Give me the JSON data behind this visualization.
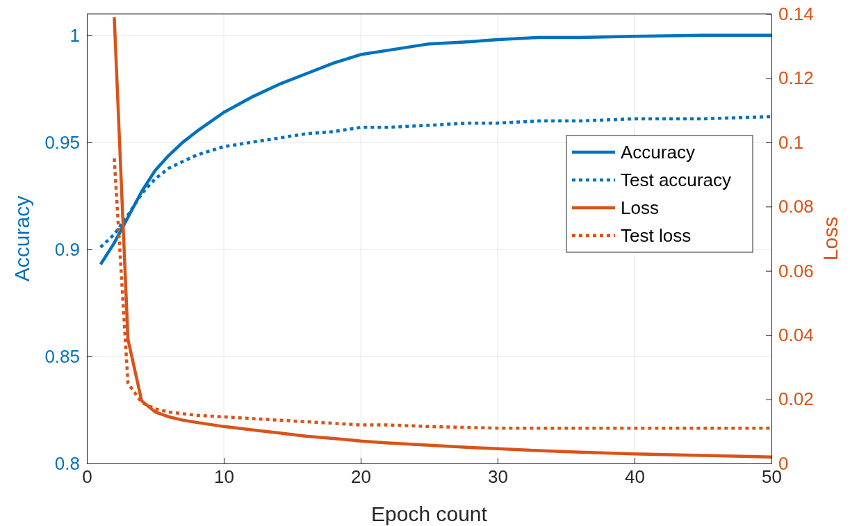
{
  "chart_data": {
    "type": "line",
    "xlabel": "Epoch count",
    "ylabel": "Accuracy",
    "y2label": "Loss",
    "x": [
      1,
      2,
      3,
      4,
      5,
      6,
      7,
      8,
      10,
      12,
      14,
      16,
      18,
      20,
      22,
      25,
      28,
      30,
      33,
      36,
      40,
      45,
      50
    ],
    "xlim": [
      0,
      50
    ],
    "xticks": [
      0,
      10,
      20,
      30,
      40,
      50
    ],
    "ylim": [
      0.8,
      1.01
    ],
    "yticks": [
      0.8,
      0.85,
      0.9,
      0.95,
      1
    ],
    "y2lim": [
      0,
      0.14
    ],
    "y2ticks": [
      0,
      0.02,
      0.04,
      0.06,
      0.08,
      0.1,
      0.12,
      0.14
    ],
    "grid": true,
    "legend": "right",
    "marker": "none",
    "series": [
      {
        "name": "Accuracy",
        "color": "#0072bd",
        "line_style": "solid",
        "values": [
          0.893,
          0.903,
          0.915,
          0.927,
          0.937,
          0.944,
          0.95,
          0.955,
          0.964,
          0.971,
          0.977,
          0.982,
          0.987,
          0.991,
          0.993,
          0.996,
          0.997,
          0.998,
          0.999,
          0.999,
          0.9995,
          1,
          1
        ]
      },
      {
        "name": "Test accuracy",
        "color": "#0072bd",
        "line_style": "dotted",
        "values": [
          0.901,
          0.907,
          0.916,
          0.926,
          0.933,
          0.938,
          0.941,
          0.944,
          0.948,
          0.95,
          0.952,
          0.954,
          0.955,
          0.957,
          0.957,
          0.958,
          0.959,
          0.959,
          0.96,
          0.96,
          0.961,
          0.961,
          0.962
        ]
      },
      {
        "name": "Loss",
        "color": "#d95319",
        "line_style": "solid",
        "axis": "y2",
        "values": [
          null,
          0.139,
          0.0387,
          0.0195,
          0.016,
          0.0145,
          0.0135,
          0.0128,
          0.0115,
          0.0105,
          0.0095,
          0.0085,
          0.0078,
          0.007,
          0.0064,
          0.0057,
          0.005,
          0.0046,
          0.004,
          0.0035,
          0.003,
          0.0025,
          0.002
        ]
      },
      {
        "name": "Test loss",
        "color": "#d95319",
        "line_style": "dotted",
        "axis": "y2",
        "values": [
          null,
          0.095,
          0.025,
          0.019,
          0.017,
          0.016,
          0.0155,
          0.015,
          0.0145,
          0.014,
          0.0135,
          0.013,
          0.0125,
          0.012,
          0.012,
          0.0115,
          0.0112,
          0.011,
          0.011,
          0.011,
          0.011,
          0.011,
          0.011
        ]
      }
    ]
  }
}
